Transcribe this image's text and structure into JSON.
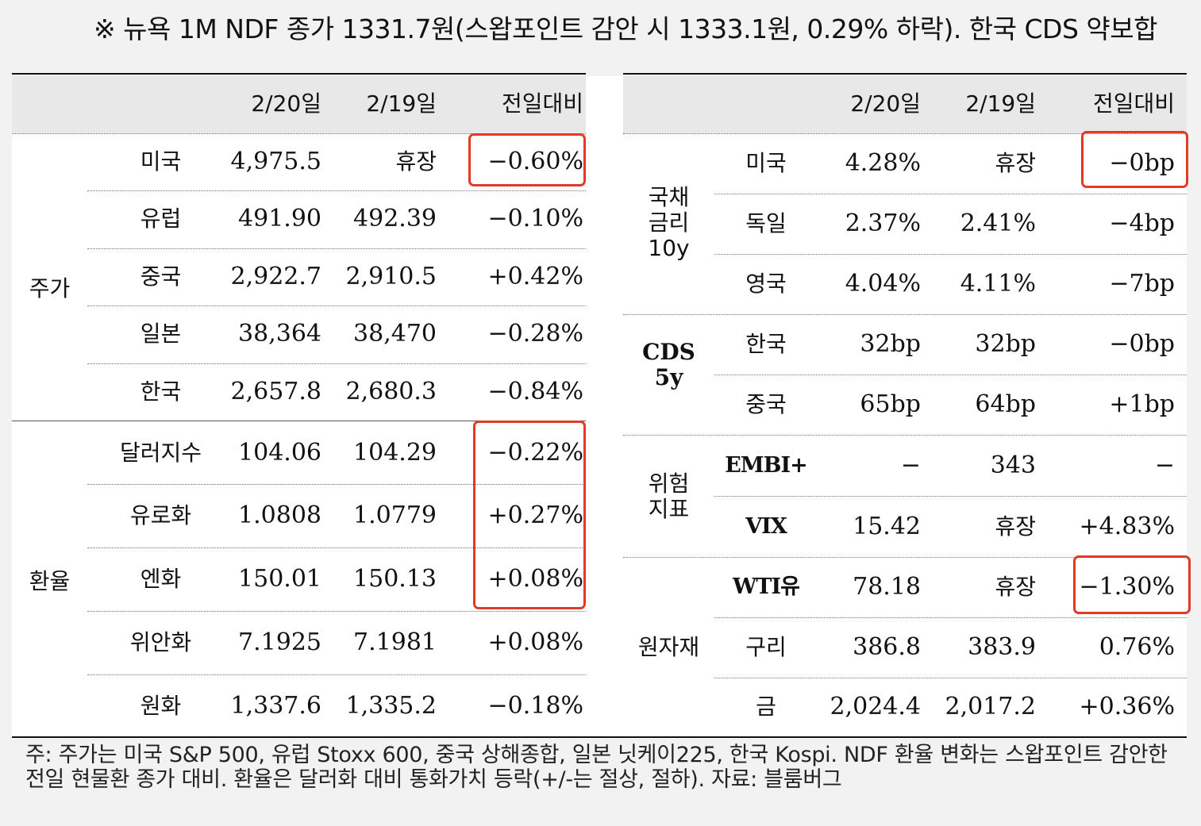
{
  "headline": "※ 뉴욕 1M NDF 종가 1331.7원(스왑포인트 감안 시 1333.1원, 0.29% 하락). 한국 CDS 약보합",
  "columns": {
    "d1": "2/20일",
    "d2": "2/19일",
    "chg": "전일대비"
  },
  "left": {
    "groups": {
      "stocks": "주가",
      "fx": "환율"
    },
    "stocks": [
      {
        "name": "미국",
        "d1": "4,975.5",
        "d2": "휴장",
        "chg": "−0.60%"
      },
      {
        "name": "유럽",
        "d1": "491.90",
        "d2": "492.39",
        "chg": "−0.10%"
      },
      {
        "name": "중국",
        "d1": "2,922.7",
        "d2": "2,910.5",
        "chg": "+0.42%"
      },
      {
        "name": "일본",
        "d1": "38,364",
        "d2": "38,470",
        "chg": "−0.28%"
      },
      {
        "name": "한국",
        "d1": "2,657.8",
        "d2": "2,680.3",
        "chg": "−0.84%"
      }
    ],
    "fx": [
      {
        "name": "달러지수",
        "d1": "104.06",
        "d2": "104.29",
        "chg": "−0.22%"
      },
      {
        "name": "유로화",
        "d1": "1.0808",
        "d2": "1.0779",
        "chg": "+0.27%"
      },
      {
        "name": "엔화",
        "d1": "150.01",
        "d2": "150.13",
        "chg": "+0.08%"
      },
      {
        "name": "위안화",
        "d1": "7.1925",
        "d2": "7.1981",
        "chg": "+0.08%"
      },
      {
        "name": "원화",
        "d1": "1,337.6",
        "d2": "1,335.2",
        "chg": "−0.18%"
      }
    ]
  },
  "right": {
    "groups": {
      "bond": "국채\n금리\n10y",
      "cds": "CDS\n5y",
      "risk": "위험\n지표",
      "commodity": "원자재"
    },
    "bond": [
      {
        "name": "미국",
        "d1": "4.28%",
        "d2": "휴장",
        "chg": "−0bp"
      },
      {
        "name": "독일",
        "d1": "2.37%",
        "d2": "2.41%",
        "chg": "−4bp"
      },
      {
        "name": "영국",
        "d1": "4.04%",
        "d2": "4.11%",
        "chg": "−7bp"
      }
    ],
    "cds": [
      {
        "name": "한국",
        "d1": "32bp",
        "d2": "32bp",
        "chg": "−0bp"
      },
      {
        "name": "중국",
        "d1": "65bp",
        "d2": "64bp",
        "chg": "+1bp"
      }
    ],
    "risk": [
      {
        "name": "EMBI+",
        "d1": "−",
        "d2": "343",
        "chg": "−"
      },
      {
        "name": "VIX",
        "d1": "15.42",
        "d2": "휴장",
        "chg": "+4.83%"
      }
    ],
    "commodity": [
      {
        "name": "WTI유",
        "d1": "78.18",
        "d2": "휴장",
        "chg": "−1.30%"
      },
      {
        "name": "구리",
        "d1": "386.8",
        "d2": "383.9",
        "chg": "0.76%"
      },
      {
        "name": "금",
        "d1": "2,024.4",
        "d2": "2,017.2",
        "chg": "+0.36%"
      }
    ]
  },
  "footnote": "주: 주가는 미국 S&P 500, 유럽 Stoxx 600, 중국 상해종합, 일본 닛케이225, 한국 Kospi. NDF 환율 변화는 스왑포인트 감안한 전일 현물환 종가 대비. 환율은 달러화 대비 통화가치 등락(+/-는 절상, 절하). 자료: 블룸버그",
  "colors": {
    "highlight": "#e03a28",
    "header_bg": "#e8e8e8"
  }
}
